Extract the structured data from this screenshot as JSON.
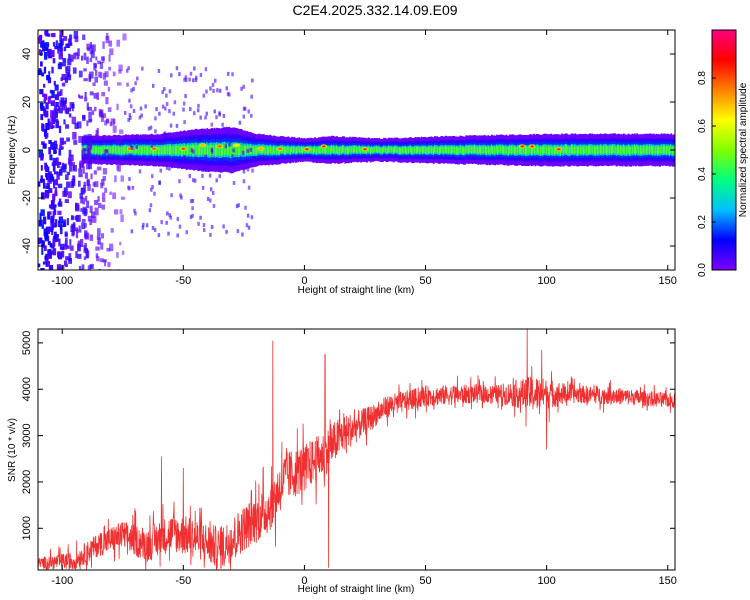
{
  "figure": {
    "title": "C2E4.2025.332.14.09.E09"
  },
  "chart_data": [
    {
      "type": "heatmap",
      "xlabel": "Height of straight line (km)",
      "ylabel": "Frequency (Hz)",
      "xlim": [
        -110,
        153
      ],
      "ylim": [
        -50,
        50
      ],
      "xticks": [
        -100,
        -50,
        0,
        50,
        100,
        150
      ],
      "yticks": [
        -40,
        -20,
        0,
        20,
        40
      ],
      "colorbar": {
        "label": "Normalized spectral amplitude",
        "range": [
          0,
          1
        ],
        "ticks": [
          0.0,
          0.2,
          0.4,
          0.6,
          0.8
        ],
        "tick_labels": [
          "0.0",
          "0.2",
          "0.4",
          "0.6",
          "0.8"
        ],
        "colormap": [
          "#7f00ff",
          "#0000ff",
          "#00c0ff",
          "#00ff80",
          "#80ff00",
          "#ffff00",
          "#ff8000",
          "#ff0000",
          "#ff0080"
        ]
      },
      "band": {
        "center_hz": 0,
        "x_start_km": -92,
        "x_end_km": 153,
        "halfwidth_hz": [
          {
            "x": -92,
            "hz": 3
          },
          {
            "x": -60,
            "hz": 3.5
          },
          {
            "x": -45,
            "hz": 4.5
          },
          {
            "x": -30,
            "hz": 5
          },
          {
            "x": -20,
            "hz": 3.5
          },
          {
            "x": 0,
            "hz": 2.5
          },
          {
            "x": 10,
            "hz": 3
          },
          {
            "x": 30,
            "hz": 2.5
          },
          {
            "x": 60,
            "hz": 3
          },
          {
            "x": 100,
            "hz": 3.5
          },
          {
            "x": 153,
            "hz": 3.5
          }
        ],
        "peaks": [
          {
            "x": -72,
            "y": 0.5,
            "a": 0.8
          },
          {
            "x": -62,
            "y": 0.5,
            "a": 0.8
          },
          {
            "x": -50,
            "y": 0.5,
            "a": 0.85
          },
          {
            "x": -42,
            "y": 2,
            "a": 0.7
          },
          {
            "x": -35,
            "y": 1.5,
            "a": 0.8
          },
          {
            "x": -28,
            "y": 2,
            "a": 0.65
          },
          {
            "x": -18,
            "y": 0.5,
            "a": 0.7
          },
          {
            "x": -10,
            "y": 0.5,
            "a": 0.8
          },
          {
            "x": 1,
            "y": 0.3,
            "a": 0.95
          },
          {
            "x": 8,
            "y": 1.5,
            "a": 0.9
          },
          {
            "x": 25,
            "y": 0.3,
            "a": 0.95
          },
          {
            "x": 90,
            "y": 1.5,
            "a": 0.9
          },
          {
            "x": 94,
            "y": 1.5,
            "a": 0.95
          },
          {
            "x": 105,
            "y": 0.3,
            "a": 0.95
          }
        ],
        "noise_region_km": [
          -110,
          -75
        ]
      }
    },
    {
      "type": "line",
      "xlabel": "Height of straight line (km)",
      "ylabel": "SNR (10 * v/v)",
      "xlim": [
        -110,
        153
      ],
      "ylim": [
        100,
        5300
      ],
      "xticks": [
        -100,
        -50,
        0,
        50,
        100,
        150
      ],
      "yticks": [
        1000,
        2000,
        3000,
        4000,
        5000
      ],
      "color": "#f03030",
      "envelope_mean": [
        {
          "x": -110,
          "y": 250
        },
        {
          "x": -95,
          "y": 300
        },
        {
          "x": -85,
          "y": 650
        },
        {
          "x": -75,
          "y": 850
        },
        {
          "x": -65,
          "y": 650
        },
        {
          "x": -55,
          "y": 900
        },
        {
          "x": -45,
          "y": 800
        },
        {
          "x": -35,
          "y": 550
        },
        {
          "x": -25,
          "y": 1000
        },
        {
          "x": -15,
          "y": 1400
        },
        {
          "x": -8,
          "y": 2100
        },
        {
          "x": 0,
          "y": 2300
        },
        {
          "x": 8,
          "y": 2600
        },
        {
          "x": 15,
          "y": 3000
        },
        {
          "x": 25,
          "y": 3300
        },
        {
          "x": 35,
          "y": 3650
        },
        {
          "x": 50,
          "y": 3850
        },
        {
          "x": 70,
          "y": 3900
        },
        {
          "x": 90,
          "y": 3900
        },
        {
          "x": 110,
          "y": 3900
        },
        {
          "x": 130,
          "y": 3850
        },
        {
          "x": 153,
          "y": 3750
        }
      ],
      "envelope_spread": [
        {
          "x": -110,
          "y": 150
        },
        {
          "x": -60,
          "y": 500
        },
        {
          "x": -30,
          "y": 600
        },
        {
          "x": -10,
          "y": 700
        },
        {
          "x": 10,
          "y": 600
        },
        {
          "x": 30,
          "y": 300
        },
        {
          "x": 80,
          "y": 250
        },
        {
          "x": 95,
          "y": 500
        },
        {
          "x": 110,
          "y": 250
        },
        {
          "x": 153,
          "y": 200
        }
      ],
      "spikes": [
        {
          "x": -13,
          "y": 5050
        },
        {
          "x": -12,
          "y": 600
        },
        {
          "x": 8.5,
          "y": 4750
        },
        {
          "x": 10,
          "y": 150
        },
        {
          "x": 92,
          "y": 5300
        },
        {
          "x": 98,
          "y": 4850
        },
        {
          "x": 100,
          "y": 2700
        },
        {
          "x": -59,
          "y": 2550
        },
        {
          "x": -50,
          "y": 2300
        }
      ]
    }
  ]
}
